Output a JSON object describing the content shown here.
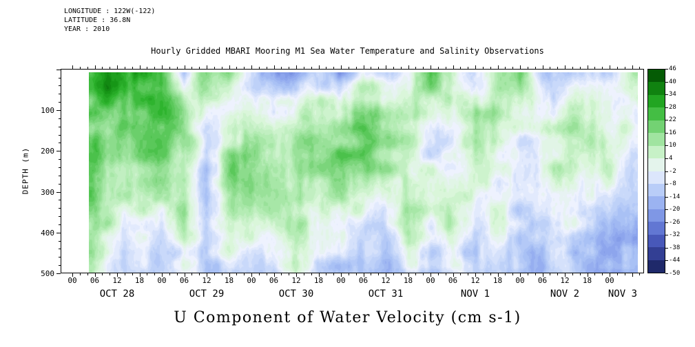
{
  "meta": {
    "longitude": "LONGITUDE : 122W(-122)",
    "latitude": "LATITUDE : 36.8N",
    "year": "YEAR : 2010"
  },
  "title": "Hourly Gridded MBARI Mooring M1 Sea Water Temperature and Salinity Observations",
  "bottom_label": "U Component of Water Velocity (cm s-1)",
  "axes": {
    "y_label": "DEPTH (m)",
    "y_tick_values": [
      100,
      200,
      300,
      400,
      500
    ],
    "x_hour_cycle": [
      "00",
      "06",
      "12",
      "18"
    ],
    "x_day_labels": [
      "OCT 28",
      "OCT 29",
      "OCT 30",
      "OCT 31",
      "NOV 1",
      "NOV 2",
      "NOV 3"
    ]
  },
  "colorbar": {
    "tick_labels": [
      46,
      40,
      34,
      28,
      22,
      16,
      10,
      4,
      -2,
      -8,
      -14,
      -20,
      -26,
      -32,
      -38,
      -44,
      -50
    ],
    "stops": [
      {
        "v": 46,
        "c": "#004800"
      },
      {
        "v": 40,
        "c": "#0a6e0a"
      },
      {
        "v": 34,
        "c": "#169616"
      },
      {
        "v": 28,
        "c": "#2eb42e"
      },
      {
        "v": 22,
        "c": "#5ac85a"
      },
      {
        "v": 16,
        "c": "#8cdc8c"
      },
      {
        "v": 10,
        "c": "#b4ecb4"
      },
      {
        "v": 4,
        "c": "#daf6da"
      },
      {
        "v": -2,
        "c": "#eef2fe"
      },
      {
        "v": -8,
        "c": "#c9d9fa"
      },
      {
        "v": -14,
        "c": "#a9c1f5"
      },
      {
        "v": -20,
        "c": "#8da5ed"
      },
      {
        "v": -26,
        "c": "#7189dd"
      },
      {
        "v": -32,
        "c": "#5265c9"
      },
      {
        "v": -38,
        "c": "#3d4ba9"
      },
      {
        "v": -44,
        "c": "#29337e"
      },
      {
        "v": -50,
        "c": "#151f56"
      }
    ]
  },
  "chart_data": {
    "type": "heatmap",
    "title": "Hourly Gridded MBARI Mooring M1 Sea Water Temperature and Salinity Observations",
    "quantity": "U Component of Water Velocity",
    "value_unit": "cm s-1",
    "ylabel": "DEPTH (m)",
    "y_range_m": [
      0,
      500
    ],
    "x_unit": "hours since OCT 28 00:00 (YEAR 2010)",
    "x_day_ticks": [
      "OCT 28",
      "OCT 29",
      "OCT 30",
      "OCT 31",
      "NOV 1",
      "NOV 2",
      "NOV 3"
    ],
    "colorbar_range": [
      -50,
      46
    ],
    "legend_position": "right",
    "grid": false,
    "x_hours": [
      6,
      12,
      18,
      24,
      30,
      36,
      42,
      48,
      54,
      60,
      66,
      72,
      78,
      84,
      90,
      96,
      102,
      108,
      114,
      120,
      126,
      132,
      138,
      144,
      150
    ],
    "depths_m": [
      10,
      50,
      100,
      150,
      200,
      250,
      300,
      350,
      400,
      450,
      500
    ],
    "values_cm_s": [
      [
        32,
        35,
        30,
        28,
        -8,
        18,
        15,
        -10,
        -16,
        -22,
        -8,
        -18,
        2,
        -6,
        -4,
        24,
        8,
        -8,
        6,
        18,
        -10,
        -14,
        -8,
        -12,
        10
      ],
      [
        28,
        30,
        26,
        24,
        0,
        12,
        8,
        -6,
        -10,
        -14,
        0,
        -8,
        8,
        0,
        2,
        16,
        4,
        0,
        10,
        12,
        -6,
        -6,
        -2,
        -6,
        6
      ],
      [
        22,
        20,
        22,
        26,
        12,
        -2,
        -4,
        2,
        -2,
        0,
        10,
        8,
        16,
        10,
        8,
        4,
        -2,
        10,
        12,
        4,
        -2,
        6,
        6,
        0,
        0
      ],
      [
        20,
        16,
        18,
        24,
        14,
        -8,
        4,
        8,
        6,
        10,
        14,
        16,
        22,
        16,
        10,
        -4,
        -6,
        14,
        10,
        -2,
        2,
        10,
        8,
        6,
        -4
      ],
      [
        22,
        14,
        15,
        20,
        14,
        -10,
        12,
        14,
        12,
        14,
        12,
        20,
        20,
        14,
        8,
        -6,
        -4,
        12,
        6,
        -6,
        4,
        10,
        6,
        8,
        -8
      ],
      [
        24,
        12,
        12,
        14,
        12,
        -10,
        16,
        18,
        14,
        12,
        10,
        18,
        16,
        10,
        8,
        0,
        2,
        8,
        2,
        -8,
        2,
        8,
        2,
        4,
        -10
      ],
      [
        22,
        10,
        8,
        8,
        10,
        -8,
        14,
        16,
        12,
        10,
        6,
        12,
        10,
        4,
        10,
        6,
        6,
        2,
        0,
        -8,
        -2,
        6,
        -2,
        -2,
        -12
      ],
      [
        18,
        6,
        2,
        2,
        12,
        -10,
        12,
        10,
        8,
        10,
        2,
        6,
        2,
        -4,
        12,
        4,
        8,
        -4,
        2,
        -10,
        -6,
        4,
        -6,
        -8,
        -14
      ],
      [
        14,
        0,
        -4,
        -6,
        10,
        -12,
        10,
        2,
        4,
        12,
        -2,
        0,
        -6,
        -10,
        10,
        -4,
        6,
        -8,
        4,
        -12,
        -10,
        0,
        -10,
        -12,
        -16
      ],
      [
        12,
        -4,
        -8,
        -10,
        2,
        -12,
        4,
        -6,
        -2,
        10,
        -6,
        -6,
        -10,
        -14,
        4,
        -10,
        0,
        -12,
        -2,
        -14,
        -14,
        -6,
        -14,
        -16,
        -18
      ],
      [
        10,
        -6,
        -10,
        -12,
        -4,
        -12,
        -6,
        -10,
        -8,
        6,
        -8,
        -10,
        -12,
        -14,
        -6,
        -12,
        -6,
        -12,
        -8,
        -14,
        -16,
        -10,
        -16,
        -18,
        -18
      ]
    ]
  }
}
